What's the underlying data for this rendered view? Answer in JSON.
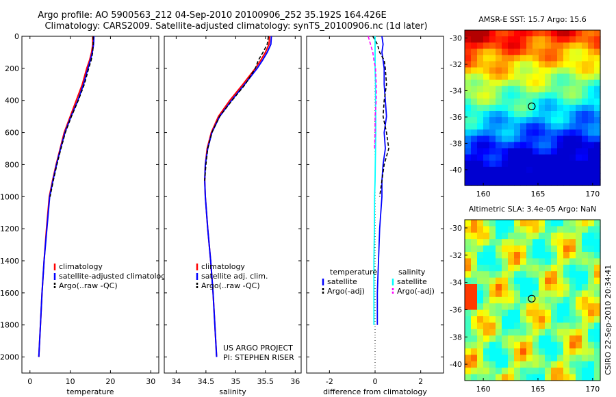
{
  "header": {
    "line1": "Argo profile: AO 5900563_212 04-Sep-2010 20100906_252 35.192S 164.426E",
    "line2": "Climatology: CARS2009. Satellite-adjusted climatology: synTS_20100906.nc (1d later)"
  },
  "colors": {
    "climatology": "#ff0000",
    "satellite": "#0000ff",
    "argo": "#000000",
    "sal_satellite": "#00ffff",
    "sal_argo": "#ff00ff"
  },
  "chart_data": [
    {
      "type": "line",
      "id": "temperature",
      "xlabel": "temperature",
      "ylabel": "",
      "xlim": [
        -2,
        32
      ],
      "ylim": [
        0,
        2100
      ],
      "xticks": [
        0,
        10,
        20,
        30
      ],
      "yticks": [
        0,
        200,
        400,
        600,
        800,
        1000,
        1200,
        1400,
        1600,
        1800,
        2000
      ],
      "legend": [
        "climatology",
        "satellite-adjusted climatology",
        "Argo(..raw -QC)"
      ],
      "series": [
        {
          "name": "climatology",
          "x": [
            15.6,
            15.6,
            15.3,
            14.8,
            14.1,
            13.0,
            11.5,
            10.0,
            8.5,
            7.5,
            6.5,
            5.6,
            4.8,
            4.1,
            3.5,
            3.0,
            2.6,
            2.2
          ],
          "y": [
            0,
            50,
            100,
            150,
            200,
            300,
            400,
            500,
            600,
            700,
            800,
            900,
            1000,
            1200,
            1400,
            1600,
            1800,
            2000
          ]
        },
        {
          "name": "satellite-adjusted climatology",
          "x": [
            15.9,
            15.8,
            15.5,
            15.0,
            14.4,
            13.3,
            11.9,
            10.2,
            8.7,
            7.6,
            6.6,
            5.7,
            4.9,
            4.2,
            3.5,
            3.0,
            2.6,
            2.2
          ],
          "y": [
            0,
            50,
            100,
            150,
            200,
            300,
            400,
            500,
            600,
            700,
            800,
            900,
            1000,
            1200,
            1400,
            1600,
            1800,
            2000
          ]
        },
        {
          "name": "Argo(..raw -QC)",
          "x": [
            15.7,
            15.7,
            15.6,
            15.2,
            14.6,
            13.5,
            12.0,
            10.3,
            8.8,
            7.7,
            6.7,
            5.8,
            5.0
          ],
          "y": [
            0,
            50,
            100,
            150,
            200,
            300,
            400,
            500,
            600,
            700,
            800,
            900,
            1000
          ]
        }
      ]
    },
    {
      "type": "line",
      "id": "salinity",
      "xlabel": "salinity",
      "xlim": [
        33.8,
        36.1
      ],
      "ylim": [
        0,
        2100
      ],
      "xticks": [
        34,
        34.5,
        35,
        35.5,
        36
      ],
      "legend": [
        "climatology",
        "satellite adj. clim.",
        "Argo(..raw -QC)"
      ],
      "annotation": [
        "US ARGO PROJECT",
        "PI: STEPHEN RISER"
      ],
      "series": [
        {
          "name": "climatology",
          "x": [
            35.57,
            35.56,
            35.5,
            35.42,
            35.33,
            35.12,
            34.9,
            34.71,
            34.59,
            34.52,
            34.49,
            34.48,
            34.49,
            34.53,
            34.58,
            34.62,
            34.65,
            34.68
          ],
          "y": [
            0,
            50,
            100,
            150,
            200,
            300,
            400,
            500,
            600,
            700,
            800,
            900,
            1000,
            1200,
            1400,
            1600,
            1800,
            2000
          ]
        },
        {
          "name": "satellite adj. clim.",
          "x": [
            35.6,
            35.59,
            35.53,
            35.45,
            35.36,
            35.15,
            34.93,
            34.73,
            34.6,
            34.53,
            34.49,
            34.48,
            34.49,
            34.53,
            34.58,
            34.62,
            34.65,
            34.68
          ],
          "y": [
            0,
            50,
            100,
            150,
            200,
            300,
            400,
            500,
            600,
            700,
            800,
            900,
            1000,
            1200,
            1400,
            1600,
            1800,
            2000
          ]
        },
        {
          "name": "Argo(..raw -QC)",
          "x": [
            35.55,
            35.53,
            35.46,
            35.38,
            35.33,
            35.16,
            34.94,
            34.73,
            34.6,
            34.53,
            34.5,
            34.48
          ],
          "y": [
            0,
            50,
            100,
            150,
            200,
            300,
            400,
            500,
            600,
            700,
            800,
            900
          ]
        }
      ]
    },
    {
      "type": "line",
      "id": "difference",
      "xlabel": "difference from climatology",
      "xlim": [
        -3,
        3
      ],
      "ylim": [
        0,
        2100
      ],
      "xticks": [
        -2,
        0,
        2
      ],
      "legend_temperature": {
        "title": "temperature",
        "items": [
          "satellite",
          "Argo(-adj)"
        ]
      },
      "legend_salinity": {
        "title": "salinity",
        "items": [
          "satellite",
          "Argo(-adj)"
        ]
      },
      "series": [
        {
          "name": "temperature satellite",
          "x": [
            0.3,
            0.35,
            0.3,
            0.35,
            0.4,
            0.4,
            0.45,
            0.5,
            0.4,
            0.45,
            0.35,
            0.3,
            0.3,
            0.2,
            0.15,
            0.1,
            0.1
          ],
          "y": [
            0,
            50,
            100,
            150,
            200,
            300,
            400,
            500,
            600,
            700,
            800,
            900,
            1000,
            1200,
            1400,
            1600,
            1800
          ]
        },
        {
          "name": "temperature Argo(-adj)",
          "x": [
            -0.1,
            0.1,
            0.2,
            0.4,
            0.45,
            0.5,
            0.4,
            0.35,
            0.5,
            0.6,
            0.4,
            0.3,
            0.2
          ],
          "y": [
            0,
            50,
            100,
            150,
            200,
            300,
            400,
            500,
            600,
            700,
            800,
            900,
            1000
          ]
        },
        {
          "name": "salinity satellite",
          "x": [
            0.0,
            0.0,
            0.0,
            0.02,
            0.02,
            0.03,
            0.03,
            0.02,
            0.01,
            0.0,
            -0.02,
            -0.03,
            -0.05,
            -0.05,
            -0.05
          ],
          "y": [
            0,
            100,
            200,
            300,
            400,
            500,
            600,
            700,
            800,
            900,
            1000,
            1200,
            1400,
            1600,
            1800
          ]
        },
        {
          "name": "salinity Argo(-adj)",
          "x": [
            -0.3,
            -0.2,
            -0.1,
            -0.05,
            0.02,
            0.05,
            0.05,
            0.0,
            0.0,
            -0.02
          ],
          "y": [
            0,
            50,
            100,
            150,
            200,
            300,
            400,
            500,
            600,
            700
          ]
        }
      ]
    },
    {
      "type": "heatmap",
      "id": "sst-map",
      "title": "AMSR-E SST: 15.7 Argo: 15.6",
      "xlim": [
        158.3,
        170.7
      ],
      "ylim": [
        -41.2,
        -29.4
      ],
      "xticks": [
        160,
        165,
        170
      ],
      "yticks": [
        -30,
        -32,
        -34,
        -36,
        -38,
        -40
      ],
      "marker": {
        "lon": 164.43,
        "lat": -35.19
      }
    },
    {
      "type": "heatmap",
      "id": "sla-map",
      "title": "Altimetric SLA: 3.4e-05 Argo: NaN",
      "xlim": [
        158.3,
        170.7
      ],
      "ylim": [
        -41.2,
        -29.4
      ],
      "xticks": [
        160,
        165,
        170
      ],
      "yticks": [
        -30,
        -32,
        -34,
        -36,
        -38,
        -40
      ],
      "marker": {
        "lon": 164.43,
        "lat": -35.19
      }
    }
  ],
  "footer": {
    "stamp": "CSIRO 22-Sep-2010 20:34:41"
  }
}
